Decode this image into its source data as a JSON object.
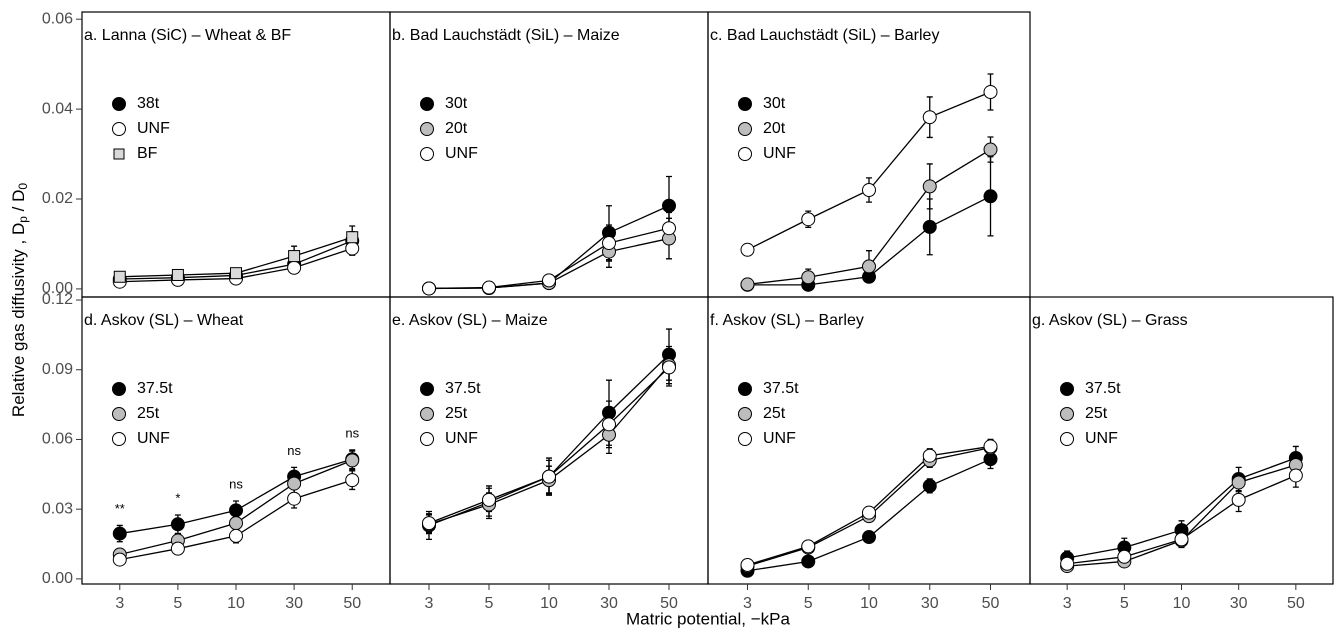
{
  "ylabel": [
    "Relative gas diffusivity , D",
    "p",
    " / D",
    "0"
  ],
  "xlabel": "Matric potential, −kPa",
  "chart_data": [
    {
      "type": "line",
      "title": "a. Lanna (SiC) – Wheat & BF",
      "ylim": [
        -0.0018,
        0.0616
      ],
      "yticks": [
        {
          "value": 0,
          "label": "0.00"
        },
        {
          "value": 0.02,
          "label": "0.02"
        },
        {
          "value": 0.04,
          "label": "0.04"
        },
        {
          "value": 0.06,
          "label": "0.06"
        }
      ],
      "series": [
        {
          "name": "38t",
          "color": "#000000",
          "marker": "circle",
          "values": [
            0.0022,
            0.0025,
            0.003,
            0.0055,
            0.0107
          ],
          "errors": [
            0.0005,
            0.0005,
            0.0007,
            0.001,
            0.002
          ]
        },
        {
          "name": "UNF",
          "color": "#ffffff",
          "marker": "circle",
          "values": [
            0.0016,
            0.002,
            0.0023,
            0.0047,
            0.009
          ],
          "errors": [
            0.0004,
            0.0004,
            0.0005,
            0.0008,
            0.0015
          ]
        },
        {
          "name": "BF",
          "color": "#d9d9d9",
          "marker": "square",
          "values": [
            0.0027,
            0.0031,
            0.0035,
            0.0073,
            0.0115
          ],
          "errors": [
            0.0006,
            0.0008,
            0.001,
            0.0022,
            0.0025
          ]
        }
      ]
    },
    {
      "type": "line",
      "title": "b. Bad Lauchstädt (SiL) – Maize",
      "ylim": [
        -0.0018,
        0.0616
      ],
      "series": [
        {
          "name": "30t",
          "color": "#000000",
          "marker": "circle",
          "values": [
            0.0001,
            0.0002,
            0.0013,
            0.0125,
            0.0185
          ],
          "errors": [
            0.0002,
            0.0002,
            0.0005,
            0.006,
            0.0065
          ]
        },
        {
          "name": "20t",
          "color": "#bdbdbd",
          "marker": "circle",
          "values": [
            0.0001,
            0.0002,
            0.0013,
            0.0083,
            0.0112
          ],
          "errors": [
            0.0001,
            0.0002,
            0.0005,
            0.0035,
            0.0045
          ]
        },
        {
          "name": "UNF",
          "color": "#ffffff",
          "marker": "circle",
          "values": [
            0.0001,
            0.0003,
            0.0019,
            0.0102,
            0.0135
          ],
          "errors": [
            0.0001,
            0.0002,
            0.0005,
            0.004,
            0.0035
          ]
        }
      ]
    },
    {
      "type": "line",
      "title": "c. Bad Lauchstädt (SiL) – Barley",
      "ylim": [
        -0.0018,
        0.0616
      ],
      "series": [
        {
          "name": "30t",
          "color": "#000000",
          "marker": "circle",
          "values": [
            0.0009,
            0.0009,
            0.0027,
            0.0138,
            0.0206
          ],
          "errors": [
            0.0003,
            0.0003,
            0.0005,
            0.0062,
            0.0088
          ]
        },
        {
          "name": "20t",
          "color": "#bdbdbd",
          "marker": "circle",
          "values": [
            0.001,
            0.0026,
            0.005,
            0.0228,
            0.031
          ],
          "errors": [
            0.0003,
            0.0018,
            0.0035,
            0.005,
            0.0028
          ]
        },
        {
          "name": "UNF",
          "color": "#ffffff",
          "marker": "circle",
          "values": [
            0.0087,
            0.0155,
            0.022,
            0.0382,
            0.0438
          ],
          "errors": [
            0.001,
            0.0018,
            0.0027,
            0.0045,
            0.004
          ]
        }
      ]
    },
    {
      "type": "line",
      "title": "d. Askov (SL) – Wheat",
      "categories": [
        "3",
        "5",
        "10",
        "30",
        "50"
      ],
      "ylim": [
        -0.0022,
        0.1213
      ],
      "yticks": [
        {
          "value": 0,
          "label": "0.00"
        },
        {
          "value": 0.03,
          "label": "0.03"
        },
        {
          "value": 0.06,
          "label": "0.06"
        },
        {
          "value": 0.09,
          "label": "0.09"
        },
        {
          "value": 0.12,
          "label": "0.12"
        }
      ],
      "annotations": [
        "**",
        "*",
        "ns",
        "ns",
        "ns"
      ],
      "series": [
        {
          "name": "37.5t",
          "color": "#000000",
          "marker": "circle",
          "values": [
            0.0195,
            0.0235,
            0.0295,
            0.044,
            0.0515
          ],
          "errors": [
            0.0035,
            0.004,
            0.004,
            0.004,
            0.004
          ]
        },
        {
          "name": "25t",
          "color": "#bdbdbd",
          "marker": "circle",
          "values": [
            0.0105,
            0.0165,
            0.024,
            0.041,
            0.051
          ],
          "errors": [
            0.002,
            0.003,
            0.003,
            0.004,
            0.004
          ]
        },
        {
          "name": "UNF",
          "color": "#ffffff",
          "marker": "circle",
          "values": [
            0.0083,
            0.013,
            0.0185,
            0.0345,
            0.0425
          ],
          "errors": [
            0.0015,
            0.002,
            0.003,
            0.004,
            0.004
          ]
        }
      ]
    },
    {
      "type": "line",
      "title": "e. Askov (SL) – Maize",
      "categories": [
        "3",
        "5",
        "10",
        "30",
        "50"
      ],
      "ylim": [
        -0.0022,
        0.1213
      ],
      "series": [
        {
          "name": "37.5t",
          "color": "#000000",
          "marker": "circle",
          "values": [
            0.023,
            0.033,
            0.044,
            0.0715,
            0.0965
          ],
          "errors": [
            0.006,
            0.007,
            0.008,
            0.014,
            0.011
          ]
        },
        {
          "name": "25t",
          "color": "#bdbdbd",
          "marker": "circle",
          "values": [
            0.0235,
            0.032,
            0.0425,
            0.062,
            0.092
          ],
          "errors": [
            0.004,
            0.005,
            0.006,
            0.008,
            0.008
          ]
        },
        {
          "name": "UNF",
          "color": "#ffffff",
          "marker": "circle",
          "values": [
            0.024,
            0.034,
            0.044,
            0.0665,
            0.091
          ],
          "errors": [
            0.004,
            0.005,
            0.007,
            0.01,
            0.008
          ]
        }
      ]
    },
    {
      "type": "line",
      "title": "f. Askov (SL) – Barley",
      "categories": [
        "3",
        "5",
        "10",
        "30",
        "50"
      ],
      "ylim": [
        -0.0022,
        0.1213
      ],
      "series": [
        {
          "name": "37.5t",
          "color": "#000000",
          "marker": "circle",
          "values": [
            0.0035,
            0.0075,
            0.018,
            0.04,
            0.0515
          ],
          "errors": [
            0.001,
            0.001,
            0.0015,
            0.003,
            0.004
          ]
        },
        {
          "name": "25t",
          "color": "#bdbdbd",
          "marker": "circle",
          "values": [
            0.0055,
            0.0135,
            0.027,
            0.051,
            0.0565
          ],
          "errors": [
            0.001,
            0.001,
            0.0015,
            0.003,
            0.003
          ]
        },
        {
          "name": "UNF",
          "color": "#ffffff",
          "marker": "circle",
          "values": [
            0.006,
            0.014,
            0.0285,
            0.053,
            0.057
          ],
          "errors": [
            0.001,
            0.001,
            0.0015,
            0.003,
            0.003
          ]
        }
      ]
    },
    {
      "type": "line",
      "title": "g. Askov (SL) – Grass",
      "categories": [
        "3",
        "5",
        "10",
        "30",
        "50"
      ],
      "ylim": [
        -0.0022,
        0.1213
      ],
      "series": [
        {
          "name": "37.5t",
          "color": "#000000",
          "marker": "circle",
          "values": [
            0.009,
            0.0135,
            0.021,
            0.043,
            0.052
          ],
          "errors": [
            0.003,
            0.004,
            0.004,
            0.005,
            0.005
          ]
        },
        {
          "name": "25t",
          "color": "#bdbdbd",
          "marker": "circle",
          "values": [
            0.0055,
            0.0075,
            0.0165,
            0.0415,
            0.049
          ],
          "errors": [
            0.002,
            0.002,
            0.003,
            0.004,
            0.004
          ]
        },
        {
          "name": "UNF",
          "color": "#ffffff",
          "marker": "circle",
          "values": [
            0.0065,
            0.0095,
            0.017,
            0.034,
            0.0445
          ],
          "errors": [
            0.002,
            0.002,
            0.003,
            0.005,
            0.005
          ]
        }
      ]
    }
  ]
}
